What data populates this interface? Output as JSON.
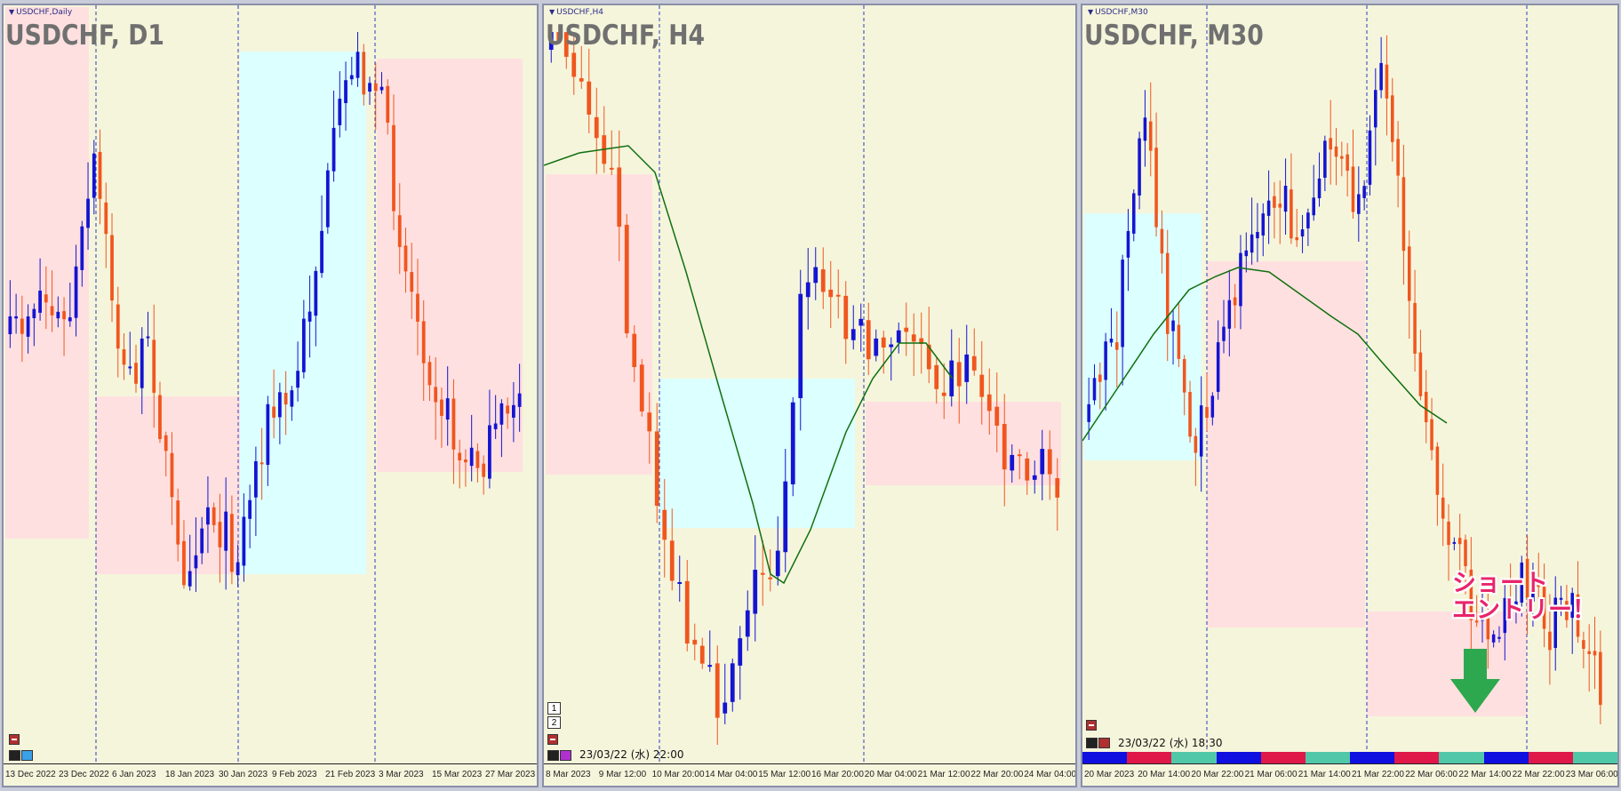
{
  "panels": [
    {
      "window_tag": "USDCHF,Daily",
      "title": "USDCHF, D1",
      "dates": [
        "13 Dec 2022",
        "23 Dec 2022",
        "6 Jan 2023",
        "18 Jan 2023",
        "30 Jan 2023",
        "9 Feb 2023",
        "21 Feb 2023",
        "3 Mar 2023",
        "15 Mar 2023",
        "27 Mar 2023"
      ],
      "status_datetime": ""
    },
    {
      "window_tag": "USDCHF,H4",
      "title": "USDCHF, H4",
      "dates": [
        "8 Mar 2023",
        "9 Mar 12:00",
        "10 Mar 20:00",
        "14 Mar 04:00",
        "15 Mar 12:00",
        "16 Mar 20:00",
        "20 Mar 04:00",
        "21 Mar 12:00",
        "22 Mar 20:00",
        "24 Mar 04:00"
      ],
      "status_datetime": "23/03/22 (水) 22:00",
      "scroll_buttons": [
        "1",
        "2"
      ]
    },
    {
      "window_tag": "USDCHF,M30",
      "title": "USDCHF, M30",
      "dates": [
        "20 Mar 2023",
        "20 Mar 14:00",
        "20 Mar 22:00",
        "21 Mar 06:00",
        "21 Mar 14:00",
        "21 Mar 22:00",
        "22 Mar 06:00",
        "22 Mar 14:00",
        "22 Mar 22:00",
        "23 Mar 06:00"
      ],
      "status_datetime": "23/03/22 (水) 18:30",
      "annotation_line1": "ショート",
      "annotation_line2": "エントリー！"
    }
  ],
  "colors": {
    "background": "#f5f5dc",
    "bull_candle": "#1414d2",
    "bear_candle": "#f0561e",
    "zone_resistance": "#ffe0e0",
    "zone_support": "#dcffff",
    "moving_average": "#107010",
    "entry_text": "#e8256b",
    "entry_arrow": "#2ea84e"
  },
  "session_strip_colors": [
    "#1010e0",
    "#e0184a",
    "#50c8a8",
    "#1010e0",
    "#e0184a",
    "#50c8a8",
    "#1010e0",
    "#e0184a",
    "#50c8a8",
    "#1010e0",
    "#e0184a",
    "#50c8a8"
  ]
}
